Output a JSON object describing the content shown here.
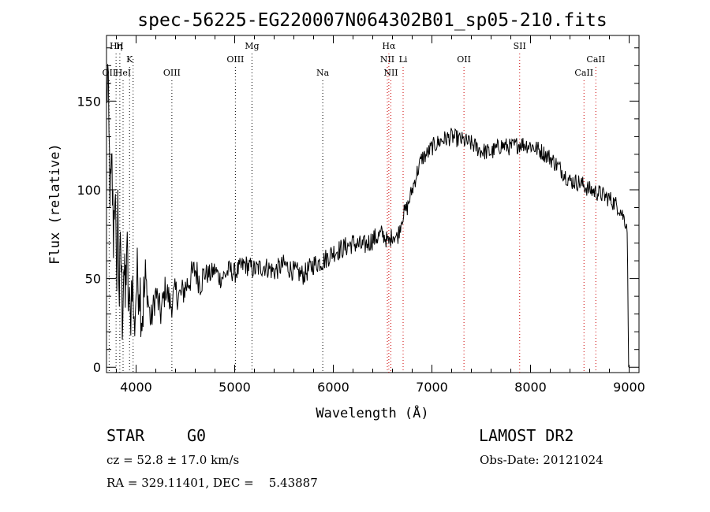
{
  "chart_data": {
    "type": "line",
    "title": "spec-56225-EG220007N064302B01_sp05-210.fits",
    "xlabel": "Wavelength (Å)",
    "ylabel": "Flux (relative)",
    "xlim": [
      3700,
      9100
    ],
    "ylim": [
      -3,
      187
    ],
    "x_ticks": [
      4000,
      5000,
      6000,
      7000,
      8000,
      9000
    ],
    "y_ticks": [
      0,
      50,
      100,
      150
    ],
    "grid": false,
    "series": [
      {
        "color": "#000000",
        "points": [
          [
            3700,
            150
          ],
          [
            3712,
            165
          ],
          [
            3725,
            125
          ],
          [
            3740,
            95
          ],
          [
            3755,
            110
          ],
          [
            3770,
            75
          ],
          [
            3785,
            105
          ],
          [
            3800,
            45
          ],
          [
            3815,
            90
          ],
          [
            3830,
            40
          ],
          [
            3845,
            70
          ],
          [
            3860,
            30
          ],
          [
            3875,
            60
          ],
          [
            3890,
            35
          ],
          [
            3905,
            70
          ],
          [
            3920,
            40
          ],
          [
            3940,
            25
          ],
          [
            3960,
            55
          ],
          [
            3980,
            20
          ],
          [
            4000,
            45
          ],
          [
            4030,
            52
          ],
          [
            4060,
            30
          ],
          [
            4100,
            48
          ],
          [
            4150,
            25
          ],
          [
            4200,
            42
          ],
          [
            4250,
            30
          ],
          [
            4300,
            45
          ],
          [
            4350,
            35
          ],
          [
            4400,
            42
          ],
          [
            4450,
            40
          ],
          [
            4500,
            45
          ],
          [
            4550,
            50
          ],
          [
            4600,
            55
          ],
          [
            4650,
            48
          ],
          [
            4700,
            53
          ],
          [
            4750,
            52
          ],
          [
            4800,
            55
          ],
          [
            4850,
            50
          ],
          [
            4900,
            52
          ],
          [
            4950,
            55
          ],
          [
            5000,
            53
          ],
          [
            5100,
            58
          ],
          [
            5200,
            55
          ],
          [
            5300,
            57
          ],
          [
            5400,
            54
          ],
          [
            5500,
            58
          ],
          [
            5600,
            54
          ],
          [
            5700,
            52
          ],
          [
            5800,
            58
          ],
          [
            5900,
            60
          ],
          [
            6000,
            65
          ],
          [
            6100,
            67
          ],
          [
            6200,
            70
          ],
          [
            6300,
            68
          ],
          [
            6400,
            72
          ],
          [
            6500,
            75
          ],
          [
            6563,
            70
          ],
          [
            6600,
            75
          ],
          [
            6650,
            73
          ],
          [
            6700,
            85
          ],
          [
            6750,
            90
          ],
          [
            6800,
            100
          ],
          [
            6850,
            110
          ],
          [
            6900,
            118
          ],
          [
            6950,
            120
          ],
          [
            7000,
            124
          ],
          [
            7100,
            128
          ],
          [
            7200,
            130
          ],
          [
            7300,
            128
          ],
          [
            7400,
            126
          ],
          [
            7500,
            122
          ],
          [
            7600,
            121
          ],
          [
            7700,
            125
          ],
          [
            7800,
            124
          ],
          [
            7900,
            126
          ],
          [
            8000,
            125
          ],
          [
            8100,
            122
          ],
          [
            8200,
            118
          ],
          [
            8300,
            112
          ],
          [
            8400,
            105
          ],
          [
            8500,
            104
          ],
          [
            8600,
            100
          ],
          [
            8700,
            98
          ],
          [
            8800,
            95
          ],
          [
            8900,
            90
          ],
          [
            8980,
            80
          ],
          [
            8995,
            0
          ]
        ]
      }
    ],
    "lines": [
      {
        "wave": 3727,
        "label": "OII",
        "row": 2,
        "color": "#000000"
      },
      {
        "wave": 3797,
        "label": "Hη",
        "row": 0,
        "color": "#000000"
      },
      {
        "wave": 3835,
        "label": "H",
        "row": 0,
        "color": "#000000"
      },
      {
        "wave": 3868,
        "label": "HeI",
        "row": 2,
        "color": "#000000"
      },
      {
        "wave": 3934,
        "label": "K",
        "row": 1,
        "color": "#000000"
      },
      {
        "wave": 3970,
        "label": "",
        "row": 1,
        "color": "#000000"
      },
      {
        "wave": 4363,
        "label": "OIII",
        "row": 2,
        "color": "#000000"
      },
      {
        "wave": 5007,
        "label": "OIII",
        "row": 1,
        "color": "#000000"
      },
      {
        "wave": 5175,
        "label": "Mg",
        "row": 0,
        "color": "#000000"
      },
      {
        "wave": 5893,
        "label": "Na",
        "row": 2,
        "color": "#000000"
      },
      {
        "wave": 6548,
        "label": "NII",
        "row": 1,
        "color": "#cc0000"
      },
      {
        "wave": 6563,
        "label": "Hα",
        "row": 0,
        "color": "#cc0000"
      },
      {
        "wave": 6584,
        "label": "NII",
        "row": 2,
        "color": "#cc0000"
      },
      {
        "wave": 6708,
        "label": "Li",
        "row": 1,
        "color": "#cc0000"
      },
      {
        "wave": 7325,
        "label": "OII",
        "row": 1,
        "color": "#cc0000"
      },
      {
        "wave": 7890,
        "label": "SII",
        "row": 0,
        "color": "#cc0000"
      },
      {
        "wave": 8542,
        "label": "CaII",
        "row": 2,
        "color": "#cc0000"
      },
      {
        "wave": 8662,
        "label": "CaII",
        "row": 1,
        "color": "#cc0000"
      }
    ]
  },
  "info": {
    "object_class": "STAR",
    "subclass": "G0",
    "survey": "LAMOST DR2",
    "redshift_text": "cz = 52.8 ± 17.0 km/s",
    "obs_date_text": "Obs-Date: 20121024",
    "coords_text": "RA = 329.11401, DEC =    5.43887"
  }
}
